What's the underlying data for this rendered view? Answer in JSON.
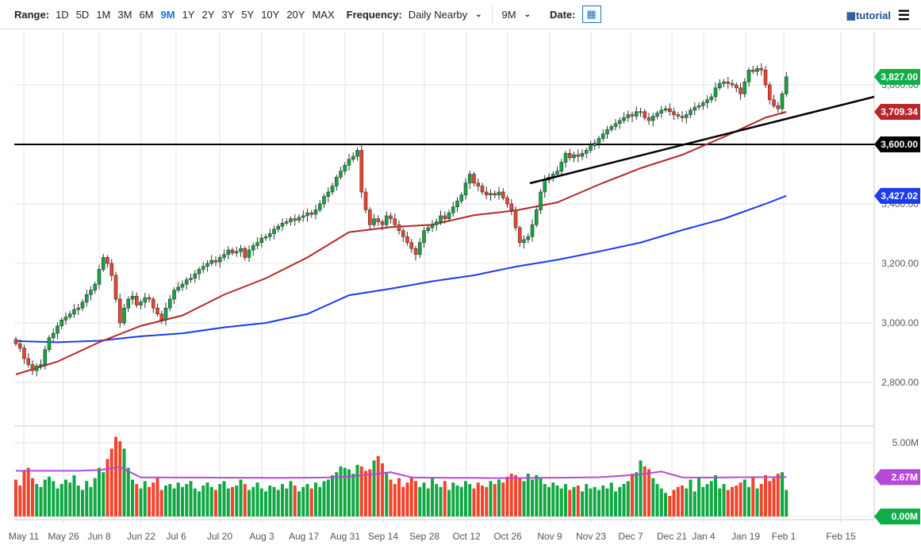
{
  "toolbar": {
    "range_label": "Range:",
    "ranges": [
      "1D",
      "5D",
      "1M",
      "3M",
      "6M",
      "9M",
      "1Y",
      "2Y",
      "3Y",
      "5Y",
      "10Y",
      "20Y",
      "MAX"
    ],
    "active_range": "9M",
    "frequency_label": "Frequency:",
    "frequency_value": "Daily Nearby",
    "period_value": "9M",
    "date_label": "Date:",
    "calendar_icon": "calendar-icon",
    "tutorial_label": "tutorial",
    "menu_icon": "hamburger-menu-icon"
  },
  "chart_data": {
    "type": "candlestick",
    "x_tick_labels": [
      "May 11",
      "May 26",
      "Jun 8",
      "Jun 22",
      "Jul 6",
      "Jul 20",
      "Aug 3",
      "Aug 17",
      "Aug 31",
      "Sep 14",
      "Sep 28",
      "Oct 12",
      "Oct 26",
      "Nov 9",
      "Nov 23",
      "Dec 7",
      "Dec 21",
      "Jan 4",
      "Jan 19",
      "Feb 1",
      "Feb 15"
    ],
    "y_tick_labels": [
      "3,800.00",
      "3,600.00",
      "3,400.00",
      "3,200.00",
      "3,000.00",
      "2,800.00"
    ],
    "y_ticks": [
      3800,
      3600,
      3400,
      3200,
      3000,
      2800
    ],
    "ylim": [
      2640,
      3960
    ],
    "closes": [
      2930,
      2915,
      2880,
      2860,
      2840,
      2855,
      2860,
      2910,
      2950,
      2965,
      2990,
      3010,
      3020,
      3030,
      3045,
      3050,
      3070,
      3095,
      3110,
      3130,
      3180,
      3220,
      3200,
      3160,
      3080,
      3000,
      3050,
      3080,
      3090,
      3060,
      3070,
      3085,
      3080,
      3050,
      3030,
      3010,
      3050,
      3080,
      3110,
      3120,
      3130,
      3145,
      3150,
      3165,
      3180,
      3190,
      3200,
      3210,
      3205,
      3220,
      3230,
      3245,
      3235,
      3240,
      3250,
      3220,
      3245,
      3260,
      3270,
      3285,
      3290,
      3300,
      3315,
      3325,
      3335,
      3340,
      3350,
      3345,
      3355,
      3360,
      3370,
      3365,
      3380,
      3400,
      3425,
      3440,
      3460,
      3490,
      3510,
      3530,
      3550,
      3560,
      3580,
      3440,
      3380,
      3330,
      3350,
      3340,
      3330,
      3360,
      3350,
      3330,
      3310,
      3290,
      3270,
      3250,
      3230,
      3270,
      3310,
      3320,
      3330,
      3340,
      3360,
      3350,
      3370,
      3390,
      3410,
      3430,
      3470,
      3500,
      3470,
      3460,
      3440,
      3430,
      3435,
      3430,
      3440,
      3420,
      3400,
      3380,
      3320,
      3270,
      3280,
      3290,
      3330,
      3380,
      3440,
      3480,
      3490,
      3500,
      3510,
      3540,
      3570,
      3555,
      3565,
      3560,
      3570,
      3580,
      3595,
      3605,
      3620,
      3635,
      3650,
      3660,
      3670,
      3680,
      3690,
      3700,
      3695,
      3710,
      3710,
      3690,
      3680,
      3695,
      3705,
      3715,
      3720,
      3710,
      3700,
      3695,
      3690,
      3700,
      3715,
      3725,
      3730,
      3740,
      3750,
      3760,
      3790,
      3805,
      3810,
      3805,
      3800,
      3790,
      3770,
      3810,
      3850,
      3845,
      3855,
      3850,
      3800,
      3750,
      3730,
      3720,
      3770,
      3827
    ],
    "ma50_every_10_days": [
      2827,
      2870,
      2935,
      2990,
      3025,
      3095,
      3150,
      3220,
      3305,
      3322,
      3330,
      3362,
      3378,
      3405,
      3465,
      3520,
      3565,
      3625,
      3690
    ],
    "ma200_every_10_days": [
      2939,
      2935,
      2940,
      2955,
      2965,
      2985,
      3000,
      3030,
      3093,
      3115,
      3140,
      3160,
      3189,
      3212,
      3240,
      3270,
      3312,
      3350,
      3400
    ],
    "ma50_last": 3709.34,
    "ma200_last": 3427.02,
    "horizontal_line": 3600,
    "trendline": [
      [
        3465,
        "Oct 30"
      ],
      [
        3755,
        "Feb 15+"
      ]
    ],
    "tags": {
      "last": {
        "text": "3,827.00",
        "color": "#0fae4a"
      },
      "ma50": {
        "text": "3,709.34",
        "color": "#b8262b"
      },
      "level": {
        "text": "3,600.00",
        "color": "#000000"
      },
      "ma200": {
        "text": "3,427.02",
        "color": "#1a3cf0"
      }
    },
    "colors": {
      "up": "#11a743",
      "down": "#f2432b",
      "ma50": "#b8262b",
      "ma200": "#1a3cf0",
      "vol_avg": "#b44ad6"
    },
    "volume": {
      "y_tick_labels": [
        "5.00M",
        "0.00M"
      ],
      "values_m": [
        2.5,
        2.1,
        3.1,
        3.3,
        2.6,
        2.2,
        2.0,
        2.5,
        2.7,
        2.4,
        1.9,
        2.2,
        2.5,
        2.3,
        2.8,
        2.1,
        1.8,
        2.4,
        2.0,
        2.6,
        3.3,
        3.0,
        3.9,
        4.6,
        5.4,
        5.1,
        4.6,
        3.3,
        2.5,
        2.2,
        1.9,
        2.4,
        2.0,
        2.3,
        2.6,
        1.8,
        2.1,
        2.2,
        1.9,
        2.3,
        2.0,
        2.2,
        2.4,
        1.9,
        1.7,
        2.1,
        2.3,
        2.0,
        1.8,
        2.2,
        2.4,
        1.9,
        2.0,
        2.1,
        2.5,
        2.2,
        1.8,
        2.0,
        2.3,
        1.9,
        1.7,
        2.1,
        2.0,
        1.8,
        2.2,
        1.9,
        2.4,
        2.1,
        1.7,
        2.0,
        2.2,
        1.9,
        2.3,
        2.0,
        2.4,
        2.5,
        2.8,
        3.0,
        3.4,
        3.3,
        3.2,
        2.9,
        3.5,
        3.4,
        3.1,
        3.2,
        3.8,
        4.1,
        3.6,
        3.0,
        2.5,
        2.2,
        2.6,
        2.0,
        2.3,
        2.7,
        2.4,
        2.0,
        2.3,
        1.9,
        2.6,
        2.2,
        2.0,
        2.4,
        1.8,
        2.3,
        2.1,
        2.0,
        2.4,
        2.2,
        1.9,
        2.3,
        2.1,
        2.0,
        2.4,
        2.2,
        2.5,
        2.3,
        2.7,
        2.9,
        2.8,
        2.6,
        2.4,
        2.9,
        2.5,
        2.8,
        2.6,
        2.2,
        2.0,
        2.3,
        2.1,
        1.9,
        2.2,
        1.8,
        2.0,
        2.1,
        1.7,
        2.2,
        1.9,
        2.0,
        1.8,
        2.1,
        1.9,
        2.3,
        1.7,
        2.0,
        2.2,
        2.4,
        2.9,
        3.0,
        3.8,
        3.4,
        3.2,
        2.6,
        2.2,
        1.9,
        1.6,
        1.4,
        1.8,
        2.0,
        2.1,
        1.9,
        2.5,
        1.7,
        2.6,
        2.0,
        2.2,
        2.4,
        2.8,
        1.9,
        2.2,
        1.8,
        2.0,
        2.1,
        2.3,
        2.5,
        2.0,
        2.7,
        1.9,
        2.2,
        2.8,
        2.4,
        2.6,
        2.9,
        3.0,
        1.8
      ],
      "avg_every_5_days": [
        3.1,
        3.1,
        3.1,
        3.1,
        3.15,
        3.35,
        2.65,
        2.65,
        2.64,
        2.64,
        2.63,
        2.63,
        2.62,
        2.62,
        2.63,
        2.65,
        2.7,
        2.85,
        3.0,
        2.65,
        2.63,
        2.62,
        2.62,
        2.6,
        2.6,
        2.62,
        2.63,
        2.64,
        2.66,
        2.75,
        2.85,
        3.05,
        2.65,
        2.64,
        2.65,
        2.66,
        2.67,
        2.67
      ],
      "avg_tag": {
        "text": "2.67M",
        "color": "#b44ad6"
      },
      "zero_tag": {
        "text": "0.00M",
        "color": "#0fae4a"
      }
    }
  }
}
